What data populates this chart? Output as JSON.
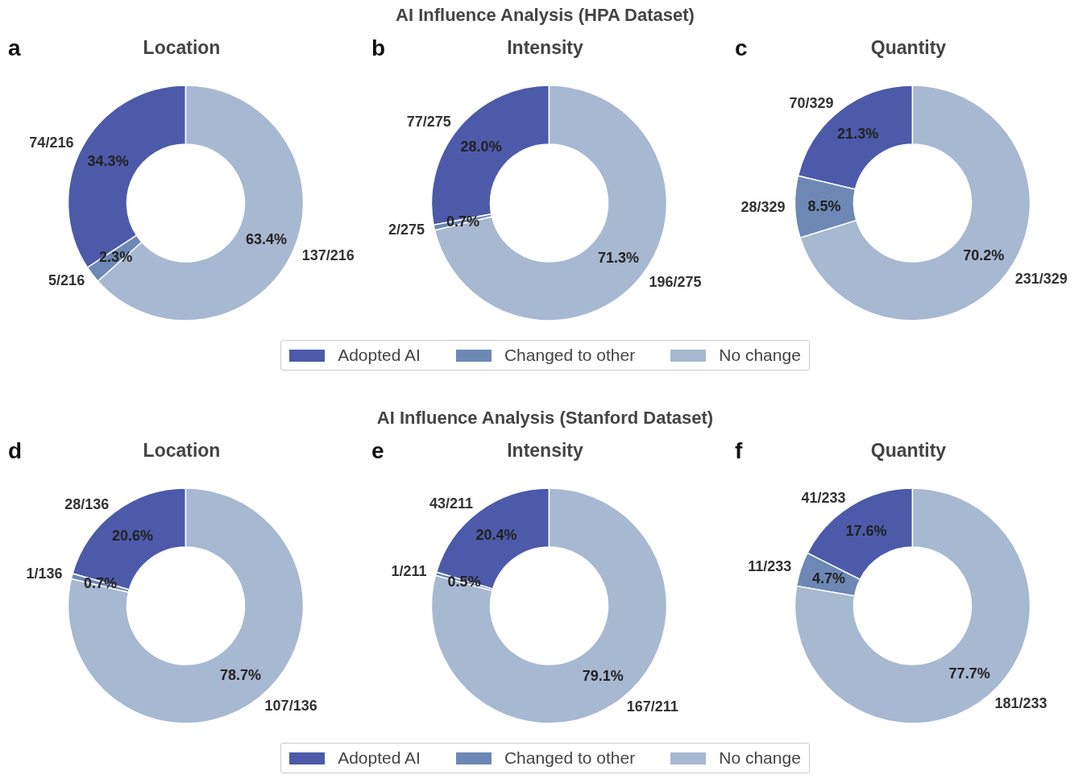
{
  "chart_data": [
    {
      "type": "donut",
      "title": "Location",
      "annotations": [
        "a",
        {
          "text": "34.3%"
        },
        {
          "text": "2.3%"
        },
        {
          "text": "63.4%"
        }
      ],
      "categories": [
        null,
        null,
        null
      ],
      "values": [
        74,
        5,
        137
      ],
      "value_labels": [
        "74/216",
        "5/216",
        "137/216"
      ],
      "colors": [
        "#4c5aa9",
        "#6d88b5",
        "#a7b8d1"
      ]
    },
    {
      "type": "donut",
      "title": "Intensity",
      "annotations": [
        "b",
        "AI Influence Analysis (HPA Dataset)",
        {
          "text": "28.0%"
        },
        {
          "text": "0.7%"
        },
        {
          "text": "71.3%"
        }
      ],
      "categories": [
        "Adopted AI",
        "Changed to other",
        "No change"
      ],
      "values": [
        77,
        2,
        196
      ],
      "value_labels": [
        "77/275",
        "2/275",
        "196/275"
      ],
      "colors": [
        "#4c5aa9",
        "#6d88b5",
        "#a7b8d1"
      ],
      "legend": "bottom"
    },
    {
      "type": "donut",
      "title": "Quantity",
      "annotations": [
        "c",
        {
          "text": "21.3%"
        },
        {
          "text": "8.5%"
        },
        {
          "text": "70.2%"
        }
      ],
      "categories": [
        null,
        null,
        null
      ],
      "values": [
        70,
        28,
        231
      ],
      "value_labels": [
        "70/329",
        "28/329",
        "231/329"
      ],
      "colors": [
        "#4c5aa9",
        "#6d88b5",
        "#a7b8d1"
      ]
    },
    {
      "type": "donut",
      "title": "Location",
      "annotations": [
        "d",
        {
          "text": "20.6%"
        },
        {
          "text": "0.7%"
        },
        {
          "text": "78.7%"
        }
      ],
      "categories": [
        null,
        null,
        null
      ],
      "values": [
        28,
        1,
        107
      ],
      "value_labels": [
        "28/136",
        "1/136",
        "107/136"
      ],
      "colors": [
        "#4c5aa9",
        "#6d88b5",
        "#a7b8d1"
      ]
    },
    {
      "type": "donut",
      "title": "Intensity",
      "annotations": [
        "e",
        "AI Influence Analysis (Stanford Dataset)",
        {
          "text": "20.4%"
        },
        {
          "text": "0.5%"
        },
        {
          "text": "79.1%"
        }
      ],
      "categories": [
        "Adopted AI",
        "Changed to other",
        "No change"
      ],
      "values": [
        43,
        1,
        167
      ],
      "value_labels": [
        "43/211",
        "1/211",
        "167/211"
      ],
      "colors": [
        "#4c5aa9",
        "#6d88b5",
        "#a7b8d1"
      ],
      "legend": "bottom"
    },
    {
      "type": "donut",
      "title": "Quantity",
      "annotations": [
        "f",
        {
          "text": "17.6%"
        },
        {
          "text": "4.7%"
        },
        {
          "text": "77.7%"
        }
      ],
      "categories": [
        null,
        null,
        null
      ],
      "values": [
        41,
        11,
        181
      ],
      "value_labels": [
        "41/233",
        "11/233",
        "181/233"
      ],
      "colors": [
        "#4c5aa9",
        "#6d88b5",
        "#a7b8d1"
      ]
    }
  ]
}
